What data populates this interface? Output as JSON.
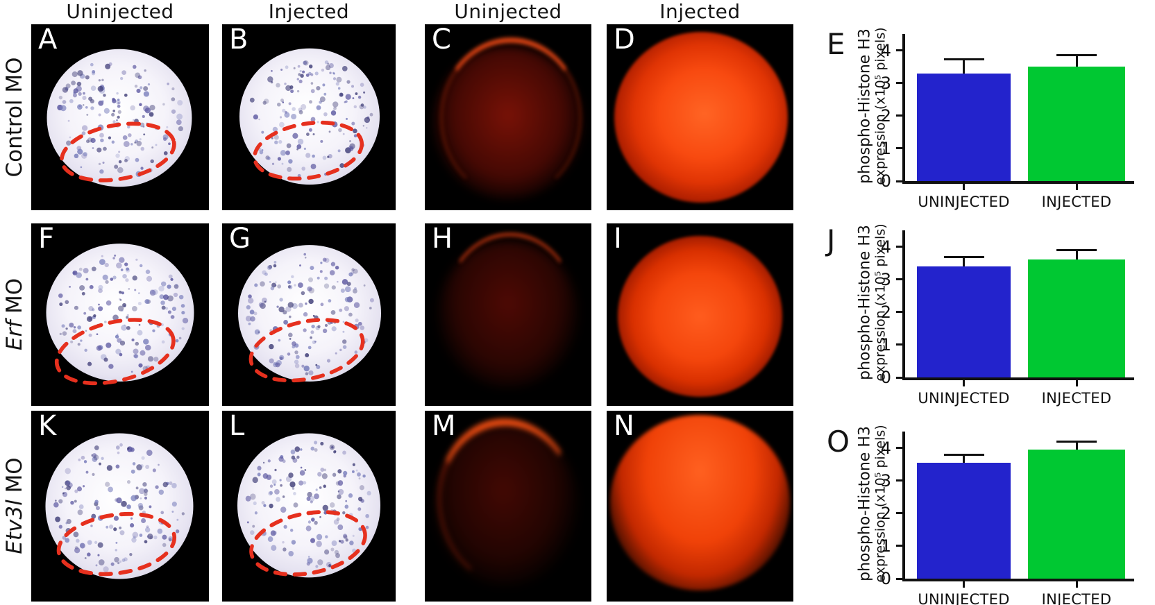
{
  "colors": {
    "bar_blue": "#2323cc",
    "bar_green": "#00c832",
    "roi_red": "#e6301e",
    "panel_background": "#000000"
  },
  "column_headers": [
    "Uninjected",
    "Injected",
    "Uninjected",
    "Injected"
  ],
  "rows": [
    {
      "label_italic": "",
      "label_rest": "Control MO",
      "panels": [
        {
          "letter": "A"
        },
        {
          "letter": "B"
        },
        {
          "letter": "C"
        },
        {
          "letter": "D"
        }
      ]
    },
    {
      "label_italic": "Erf",
      "label_rest": " MO",
      "panels": [
        {
          "letter": "F"
        },
        {
          "letter": "G"
        },
        {
          "letter": "H"
        },
        {
          "letter": "I"
        }
      ]
    },
    {
      "label_italic": "Etv3l",
      "label_rest": " MO",
      "panels": [
        {
          "letter": "K"
        },
        {
          "letter": "L"
        },
        {
          "letter": "M"
        },
        {
          "letter": "N"
        }
      ]
    }
  ],
  "chart_data": [
    {
      "type": "bar",
      "panel": "E",
      "categories": [
        "UNINJECTED",
        "INJECTED"
      ],
      "values": [
        3.3,
        3.5
      ],
      "errors": [
        0.4,
        0.32
      ],
      "bar_colors": [
        "#2323cc",
        "#00c832"
      ],
      "ylabel_line1": "phospho-Histone H3",
      "ylabel_line2": "expression (x10⁵ pixels)",
      "yticks": [
        0,
        1,
        2,
        3,
        4
      ],
      "ylim": [
        0,
        4.5
      ],
      "grid": false,
      "legend": "none"
    },
    {
      "type": "bar",
      "panel": "J",
      "categories": [
        "UNINJECTED",
        "INJECTED"
      ],
      "values": [
        3.4,
        3.6
      ],
      "errors": [
        0.25,
        0.26
      ],
      "bar_colors": [
        "#2323cc",
        "#00c832"
      ],
      "ylabel_line1": "phospho-Histone H3",
      "ylabel_line2": "expression (x10⁵ pixels)",
      "yticks": [
        0,
        1,
        2,
        3,
        4
      ],
      "ylim": [
        0,
        4.5
      ],
      "grid": false,
      "legend": "none"
    },
    {
      "type": "bar",
      "panel": "O",
      "categories": [
        "UNINJECTED",
        "INJECTED"
      ],
      "values": [
        3.55,
        3.95
      ],
      "errors": [
        0.2,
        0.22
      ],
      "bar_colors": [
        "#2323cc",
        "#00c832"
      ],
      "ylabel_line1": "phospho-Histone H3",
      "ylabel_line2": "expression (x10⁵ pixels)",
      "yticks": [
        0,
        1,
        2,
        3,
        4
      ],
      "ylim": [
        0,
        4.5
      ],
      "grid": false,
      "legend": "none"
    }
  ]
}
